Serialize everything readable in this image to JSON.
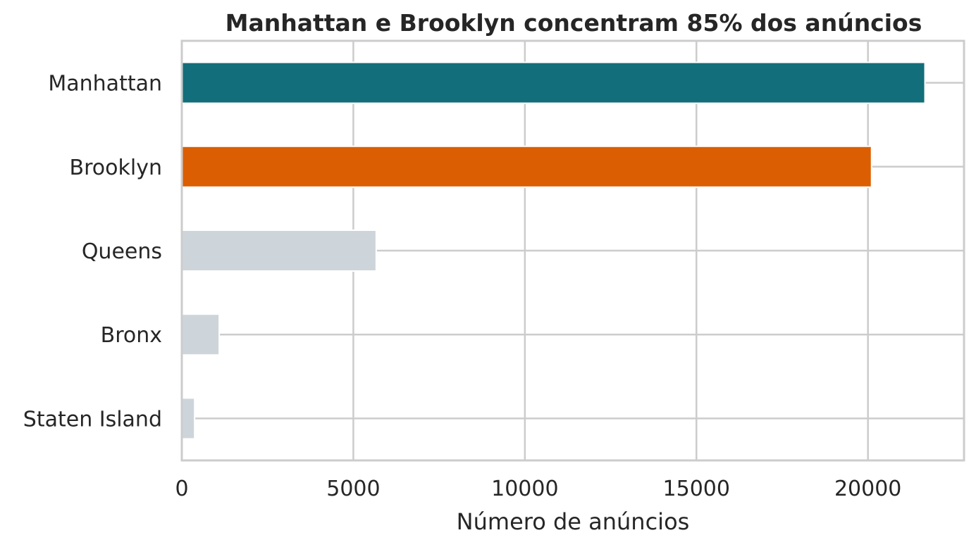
{
  "chart_data": {
    "type": "bar",
    "orientation": "horizontal",
    "title": "Manhattan e Brooklyn concentram 85% dos anúncios",
    "xlabel": "Número de anúncios",
    "ylabel": "",
    "categories": [
      "Manhattan",
      "Brooklyn",
      "Queens",
      "Bronx",
      "Staten Island"
    ],
    "values": [
      21661,
      20104,
      5666,
      1091,
      373
    ],
    "colors": [
      "#116e7a",
      "#db5f02",
      "#cdd5db",
      "#cdd5db",
      "#cdd5db"
    ],
    "xlim": [
      0,
      22800
    ],
    "xticks": [
      0,
      5000,
      10000,
      15000,
      20000
    ],
    "xtick_labels": [
      "0",
      "5000",
      "10000",
      "15000",
      "20000"
    ],
    "grid": true,
    "grid_color": "#cccccc"
  }
}
